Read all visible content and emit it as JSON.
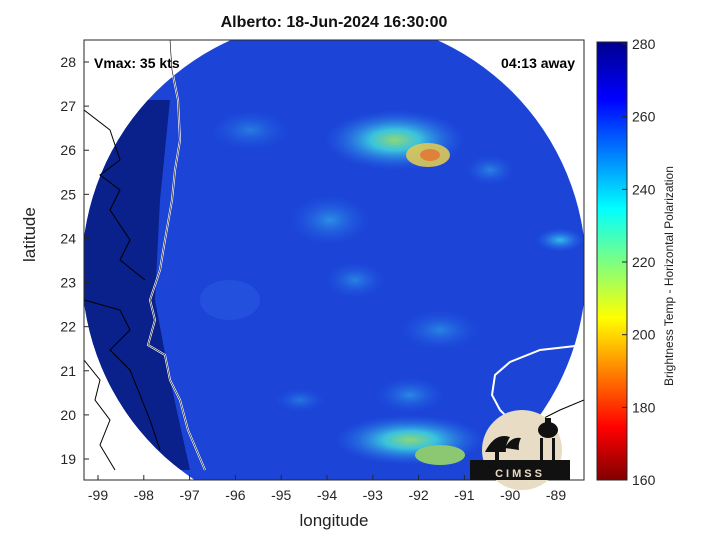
{
  "title": "Alberto: 18-Jun-2024 16:30:00",
  "annotations": {
    "vmax": "Vmax: 35 kts",
    "time_away": "04:13 away"
  },
  "axes": {
    "xlabel": "longitude",
    "ylabel": "latitude",
    "x_ticks": [
      "-99",
      "-98",
      "-97",
      "-96",
      "-95",
      "-94",
      "-93",
      "-92",
      "-91",
      "-90",
      "-89"
    ],
    "y_ticks": [
      "28",
      "27",
      "26",
      "25",
      "24",
      "23",
      "22",
      "21",
      "20",
      "19"
    ]
  },
  "colorbar": {
    "label": "Brightness Temp - Horizontal Polarization",
    "ticks": [
      "280",
      "260",
      "240",
      "220",
      "200",
      "180",
      "160"
    ],
    "range": [
      160,
      280
    ],
    "colormap": "jet"
  },
  "logo": {
    "text": "CIMSS"
  },
  "colors": {
    "background_disk": "#1a3fd6",
    "outside_disk": "#0a1f7a",
    "land_outline": "#ffffff",
    "coast_outline": "#000000"
  }
}
